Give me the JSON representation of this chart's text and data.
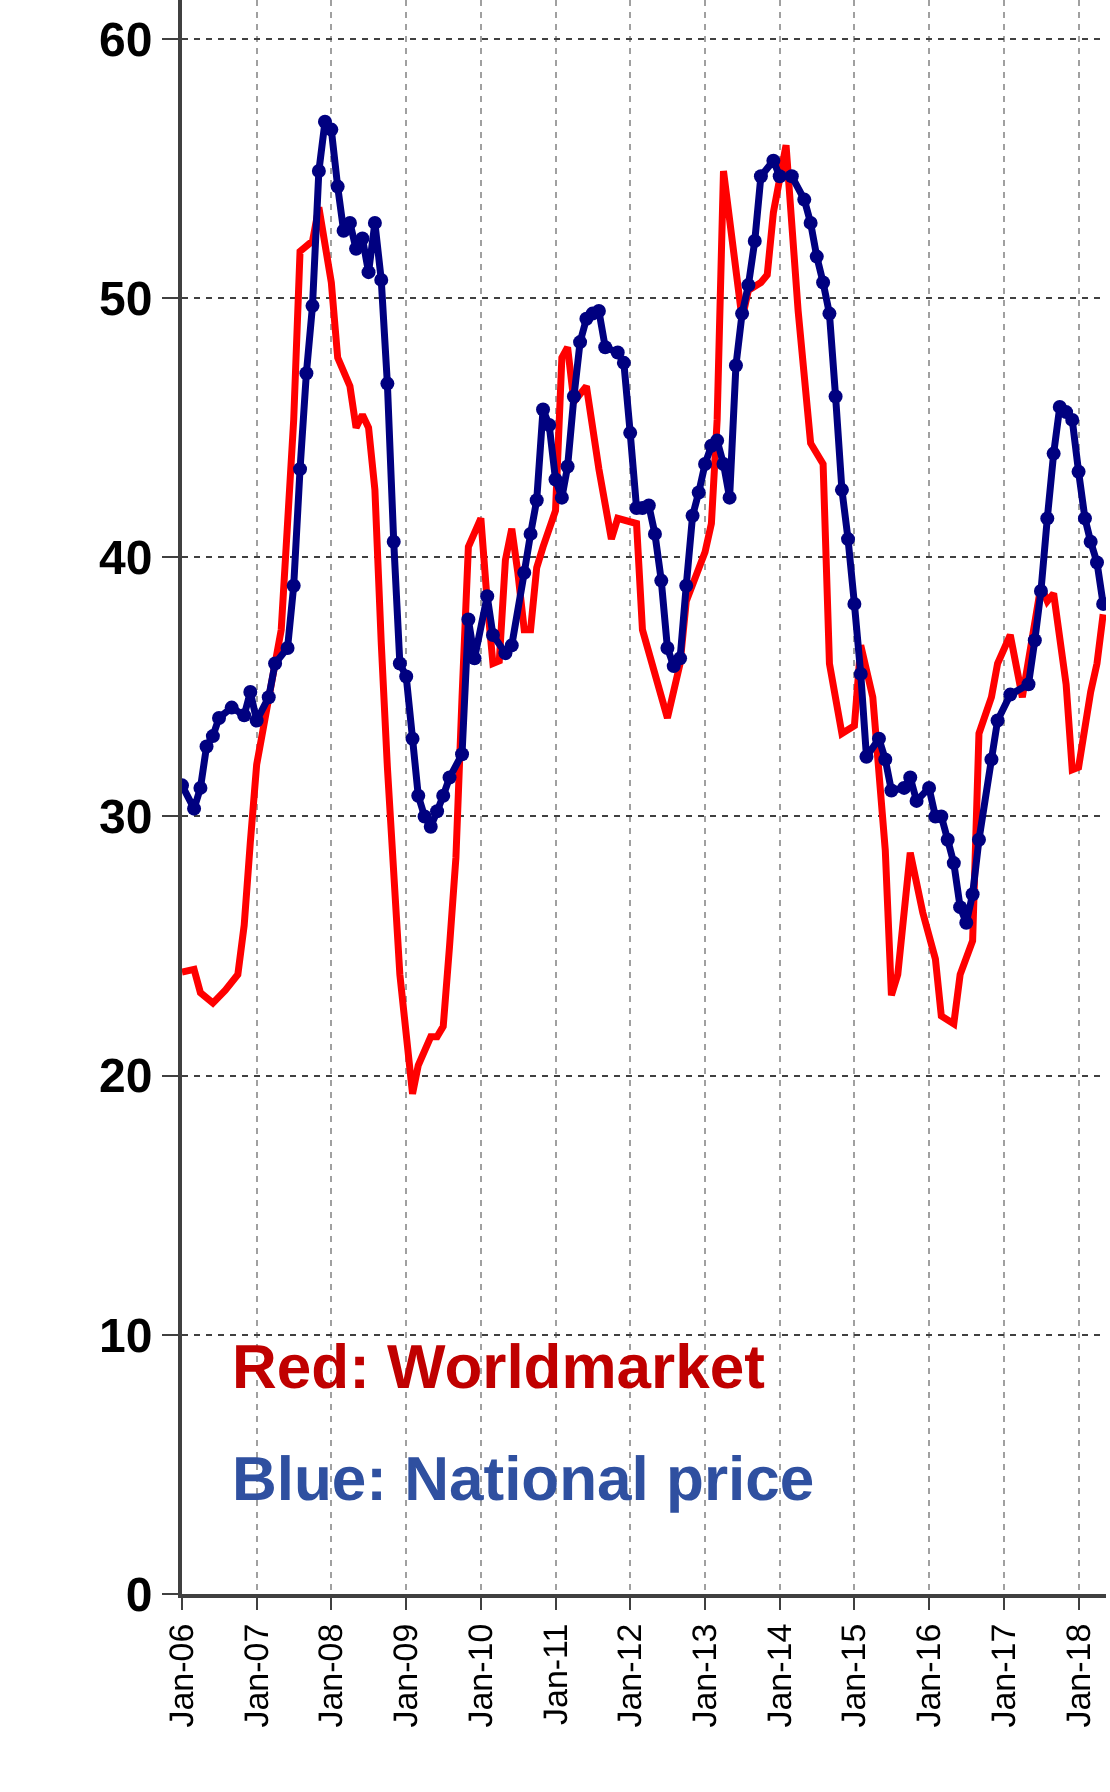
{
  "chart_data": {
    "type": "line",
    "xlim": [
      "2006-01",
      "2018-05-15"
    ],
    "ylim": [
      0,
      61.5
    ],
    "yticks": [
      0,
      10,
      20,
      30,
      40,
      50,
      60
    ],
    "xticks": [
      {
        "value": "2006-01",
        "label": "Jan-06"
      },
      {
        "value": "2007-01",
        "label": "Jan-07"
      },
      {
        "value": "2008-01",
        "label": "Jan-08"
      },
      {
        "value": "2009-01",
        "label": "Jan-09"
      },
      {
        "value": "2010-01",
        "label": "Jan-10"
      },
      {
        "value": "2011-01",
        "label": "Jan-11"
      },
      {
        "value": "2012-01",
        "label": "Jan-12"
      },
      {
        "value": "2013-01",
        "label": "Jan-13"
      },
      {
        "value": "2014-01",
        "label": "Jan-14"
      },
      {
        "value": "2015-01",
        "label": "Jan-15"
      },
      {
        "value": "2016-01",
        "label": "Jan-16"
      },
      {
        "value": "2017-01",
        "label": "Jan-17"
      },
      {
        "value": "2018-01",
        "label": "Jan-18"
      }
    ],
    "grid": true,
    "annotations": [
      "Red: Worldmarket",
      "Blue: National price"
    ],
    "series": [
      {
        "color": "#ff0000",
        "marker": "none",
        "line_style": "solid",
        "x": [
          "2006-01",
          "2006-03",
          "2006-04",
          "2006-06",
          "2006-08",
          "2006-10",
          "2006-11",
          "2006-12",
          "2007-01",
          "2007-05",
          "2007-07",
          "2007-08",
          "2007-10",
          "2007-11",
          "2008-01",
          "2008-02",
          "2008-04",
          "2008-05",
          "2008-06",
          "2008-07",
          "2008-08",
          "2008-09",
          "2008-10",
          "2008-12",
          "2009-02",
          "2009-03",
          "2009-05",
          "2009-06",
          "2009-07",
          "2009-08",
          "2009-09",
          "2009-10",
          "2009-11",
          "2010-01",
          "2010-02",
          "2010-03",
          "2010-04",
          "2010-05",
          "2010-06",
          "2010-07",
          "2010-08",
          "2010-09",
          "2010-10",
          "2010-11",
          "2011-01",
          "2011-02",
          "2011-03",
          "2011-04",
          "2011-06",
          "2011-08",
          "2011-10",
          "2011-11",
          "2012-02",
          "2012-03",
          "2012-07",
          "2012-09",
          "2012-10",
          "2013-01",
          "2013-02",
          "2013-03",
          "2013-04",
          "2013-07",
          "2013-08",
          "2013-10",
          "2013-11",
          "2013-12",
          "2014-02",
          "2014-04",
          "2014-06",
          "2014-08",
          "2014-09",
          "2014-11",
          "2015-01",
          "2015-02",
          "2015-04",
          "2015-06",
          "2015-07",
          "2015-08",
          "2015-10",
          "2015-12",
          "2016-02",
          "2016-03",
          "2016-05",
          "2016-06",
          "2016-08",
          "2016-09",
          "2016-11",
          "2016-12",
          "2017-02",
          "2017-04",
          "2017-07",
          "2017-08",
          "2017-09",
          "2017-11",
          "2017-12",
          "2018-01",
          "2018-03",
          "2018-04",
          "2018-05"
        ],
        "values": [
          24,
          24.1,
          23.2,
          22.8,
          23.3,
          23.9,
          25.8,
          29,
          32,
          37.2,
          45.3,
          51.8,
          52.2,
          53.5,
          50.6,
          47.7,
          46.6,
          45,
          45.5,
          45,
          42.6,
          36.7,
          31.9,
          23.9,
          19.3,
          20.4,
          21.5,
          21.5,
          21.9,
          25,
          28.4,
          34.6,
          40.4,
          41.5,
          38.3,
          35.9,
          36,
          39.9,
          41.1,
          39.4,
          37.2,
          37.2,
          39.6,
          40.4,
          41.8,
          47.7,
          48.1,
          46,
          46.6,
          43.4,
          40.7,
          41.5,
          41.3,
          37.2,
          33.8,
          35.9,
          38.3,
          40.2,
          41.3,
          45.3,
          54.9,
          49.2,
          50.3,
          50.6,
          50.9,
          53.3,
          55.9,
          49.5,
          44.4,
          43.6,
          35.9,
          33.2,
          33.5,
          36.6,
          34.6,
          28.7,
          23.1,
          23.9,
          28.6,
          26.3,
          24.5,
          22.3,
          22,
          23.9,
          25.2,
          33.2,
          34.6,
          35.9,
          37,
          34.6,
          38.9,
          38.3,
          38.6,
          35.1,
          31.8,
          31.9,
          34.8,
          35.9,
          37.8
        ]
      },
      {
        "color": "#000080",
        "marker": "circle",
        "line_style": "solid",
        "x": [
          "2006-01",
          "2006-03",
          "2006-04",
          "2006-05",
          "2006-06",
          "2006-07",
          "2006-09",
          "2006-11",
          "2006-12",
          "2007-01",
          "2007-03",
          "2007-04",
          "2007-06",
          "2007-07",
          "2007-08",
          "2007-09",
          "2007-10",
          "2007-11",
          "2007-12",
          "2008-01",
          "2008-02",
          "2008-03",
          "2008-04",
          "2008-05",
          "2008-06",
          "2008-07",
          "2008-08",
          "2008-09",
          "2008-10",
          "2008-11",
          "2008-12",
          "2009-01",
          "2009-02",
          "2009-03",
          "2009-04",
          "2009-05",
          "2009-06",
          "2009-07",
          "2009-08",
          "2009-10",
          "2009-11",
          "2009-12",
          "2010-02",
          "2010-03",
          "2010-05",
          "2010-06",
          "2010-08",
          "2010-09",
          "2010-10",
          "2010-11",
          "2010-12",
          "2011-01",
          "2011-02",
          "2011-03",
          "2011-04",
          "2011-05",
          "2011-06",
          "2011-07",
          "2011-08",
          "2011-09",
          "2011-11",
          "2011-12",
          "2012-01",
          "2012-02",
          "2012-03",
          "2012-04",
          "2012-05",
          "2012-06",
          "2012-07",
          "2012-08",
          "2012-09",
          "2012-10",
          "2012-11",
          "2012-12",
          "2013-01",
          "2013-02",
          "2013-03",
          "2013-04",
          "2013-05",
          "2013-06",
          "2013-07",
          "2013-08",
          "2013-09",
          "2013-10",
          "2013-12",
          "2014-01",
          "2014-03",
          "2014-05",
          "2014-06",
          "2014-07",
          "2014-08",
          "2014-09",
          "2014-10",
          "2014-11",
          "2014-12",
          "2015-01",
          "2015-02",
          "2015-03",
          "2015-05",
          "2015-06",
          "2015-07",
          "2015-09",
          "2015-10",
          "2015-11",
          "2016-01",
          "2016-02",
          "2016-03",
          "2016-04",
          "2016-05",
          "2016-06",
          "2016-07",
          "2016-08",
          "2016-09",
          "2016-11",
          "2016-12",
          "2017-02",
          "2017-05",
          "2017-06",
          "2017-07",
          "2017-08",
          "2017-09",
          "2017-10",
          "2017-11",
          "2017-12",
          "2018-01",
          "2018-02",
          "2018-03",
          "2018-04",
          "2018-05"
        ],
        "values": [
          31.2,
          30.3,
          31.1,
          32.7,
          33.1,
          33.8,
          34.2,
          33.9,
          34.8,
          33.7,
          34.6,
          35.9,
          36.5,
          38.9,
          43.4,
          47.1,
          49.7,
          54.9,
          56.8,
          56.5,
          54.3,
          52.6,
          52.9,
          51.9,
          52.3,
          51,
          52.9,
          50.7,
          46.7,
          40.6,
          35.9,
          35.4,
          33,
          30.8,
          30,
          29.6,
          30.2,
          30.8,
          31.5,
          32.4,
          37.6,
          36.1,
          38.5,
          37,
          36.3,
          36.6,
          39.4,
          40.9,
          42.2,
          45.7,
          45.1,
          43,
          42.3,
          43.5,
          46.2,
          48.3,
          49.2,
          49.4,
          49.5,
          48.1,
          47.9,
          47.5,
          44.8,
          41.9,
          41.9,
          42,
          40.9,
          39.1,
          36.5,
          35.8,
          36.1,
          38.9,
          41.6,
          42.5,
          43.6,
          44.3,
          44.5,
          43.6,
          42.3,
          47.4,
          49.4,
          50.5,
          52.2,
          54.7,
          55.3,
          54.7,
          54.7,
          53.8,
          52.9,
          51.6,
          50.6,
          49.4,
          46.2,
          42.6,
          40.7,
          38.2,
          35.5,
          32.3,
          33,
          32.2,
          31,
          31.1,
          31.5,
          30.6,
          31.1,
          30,
          30,
          29.1,
          28.2,
          26.5,
          25.9,
          27,
          29.1,
          32.2,
          33.7,
          34.7,
          35.1,
          36.8,
          38.7,
          41.5,
          44,
          45.8,
          45.6,
          45.3,
          43.3,
          41.5,
          40.6,
          39.8,
          38.2
        ]
      }
    ]
  }
}
